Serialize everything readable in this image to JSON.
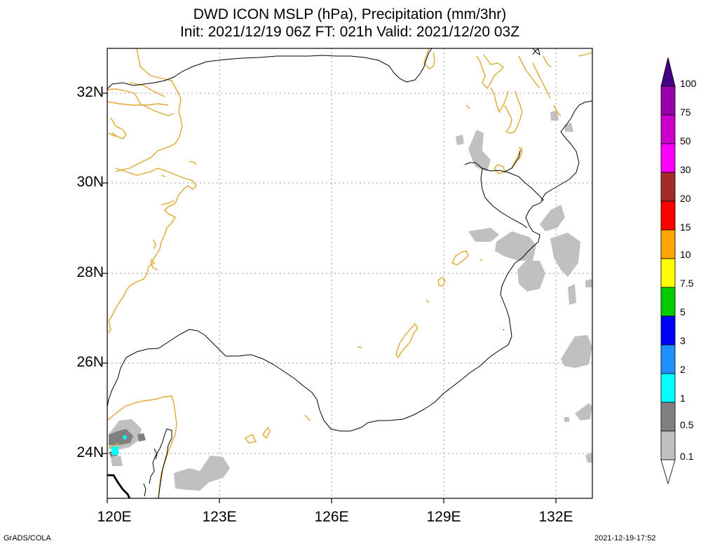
{
  "header": {
    "line1": "DWD ICON MSLP (hPa), Precipitation (mm/3hr)",
    "line2": "Init: 2021/12/19 06Z  FT: 021h  Valid: 2021/12/20 03Z"
  },
  "axes": {
    "y_labels": [
      "32N",
      "30N",
      "28N",
      "26N",
      "24N"
    ],
    "x_labels": [
      "120E",
      "123E",
      "126E",
      "129E",
      "132E"
    ],
    "lat_range": [
      23,
      33
    ],
    "lon_range": [
      120,
      133
    ]
  },
  "colorbar": {
    "levels": [
      "0.1",
      "0.5",
      "1",
      "2",
      "3",
      "5",
      "7.5",
      "10",
      "15",
      "20",
      "30",
      "50",
      "75",
      "100"
    ],
    "colors": [
      "#ffffff",
      "#c0c0c0",
      "#808080",
      "#00ffff",
      "#1e90ff",
      "#0000ff",
      "#00cc00",
      "#ffff00",
      "#ffa500",
      "#ff0000",
      "#a52a2a",
      "#ff00ff",
      "#cc00cc",
      "#9900aa",
      "#440088"
    ]
  },
  "footer": {
    "left": "GrADS/COLA",
    "right": "2021-12-19-17:52"
  },
  "style": {
    "coast_color": "#e0a830",
    "isobar_color": "#000000",
    "grid_color": "#999999"
  }
}
